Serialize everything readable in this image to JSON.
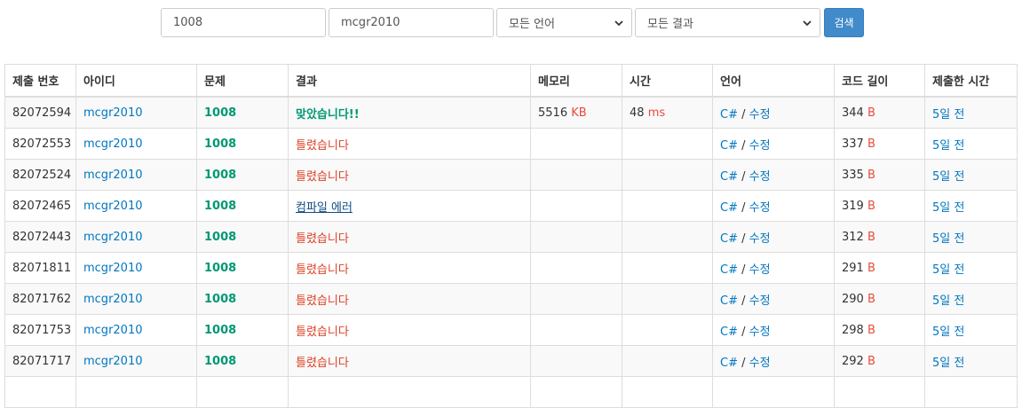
{
  "filters": {
    "problem_value": "1008",
    "user_value": "mcgr2010",
    "language_selected": "모든 언어",
    "result_selected": "모든 결과",
    "search_label": "검색"
  },
  "table": {
    "headers": [
      "제출 번호",
      "아이디",
      "문제",
      "결과",
      "메모리",
      "시간",
      "언어",
      "코드 길이",
      "제출한 시간"
    ],
    "units": {
      "memory": "KB",
      "time": "ms",
      "length": "B"
    },
    "edit_label": "수정",
    "rows": [
      {
        "id": "82072594",
        "user": "mcgr2010",
        "problem": "1008",
        "result": "맞았습니다!!",
        "result_type": "ac",
        "memory": "5516",
        "time": "48",
        "lang": "C#",
        "length": "344",
        "submitted": "5일 전"
      },
      {
        "id": "82072553",
        "user": "mcgr2010",
        "problem": "1008",
        "result": "틀렸습니다",
        "result_type": "wa",
        "memory": "",
        "time": "",
        "lang": "C#",
        "length": "337",
        "submitted": "5일 전"
      },
      {
        "id": "82072524",
        "user": "mcgr2010",
        "problem": "1008",
        "result": "틀렸습니다",
        "result_type": "wa",
        "memory": "",
        "time": "",
        "lang": "C#",
        "length": "335",
        "submitted": "5일 전"
      },
      {
        "id": "82072465",
        "user": "mcgr2010",
        "problem": "1008",
        "result": "컴파일 에러",
        "result_type": "ce",
        "memory": "",
        "time": "",
        "lang": "C#",
        "length": "319",
        "submitted": "5일 전"
      },
      {
        "id": "82072443",
        "user": "mcgr2010",
        "problem": "1008",
        "result": "틀렸습니다",
        "result_type": "wa",
        "memory": "",
        "time": "",
        "lang": "C#",
        "length": "312",
        "submitted": "5일 전"
      },
      {
        "id": "82071811",
        "user": "mcgr2010",
        "problem": "1008",
        "result": "틀렸습니다",
        "result_type": "wa",
        "memory": "",
        "time": "",
        "lang": "C#",
        "length": "291",
        "submitted": "5일 전"
      },
      {
        "id": "82071762",
        "user": "mcgr2010",
        "problem": "1008",
        "result": "틀렸습니다",
        "result_type": "wa",
        "memory": "",
        "time": "",
        "lang": "C#",
        "length": "290",
        "submitted": "5일 전"
      },
      {
        "id": "82071753",
        "user": "mcgr2010",
        "problem": "1008",
        "result": "틀렸습니다",
        "result_type": "wa",
        "memory": "",
        "time": "",
        "lang": "C#",
        "length": "298",
        "submitted": "5일 전"
      },
      {
        "id": "82071717",
        "user": "mcgr2010",
        "problem": "1008",
        "result": "틀렸습니다",
        "result_type": "wa",
        "memory": "",
        "time": "",
        "lang": "C#",
        "length": "292",
        "submitted": "5일 전"
      },
      {
        "id": "",
        "user": "",
        "problem": "",
        "result": "",
        "result_type": "",
        "memory": "",
        "time": "",
        "lang": "",
        "length": "",
        "submitted": ""
      }
    ]
  },
  "colors": {
    "link_blue": "#0076c0",
    "accepted_green": "#009874",
    "wrong_red": "#dd4124",
    "compile_error_navy": "#0f4c81",
    "unit_red": "#e74c3c",
    "button_blue": "#428bca"
  },
  "icons": {
    "select_arrow": "chevron-down-icon"
  }
}
